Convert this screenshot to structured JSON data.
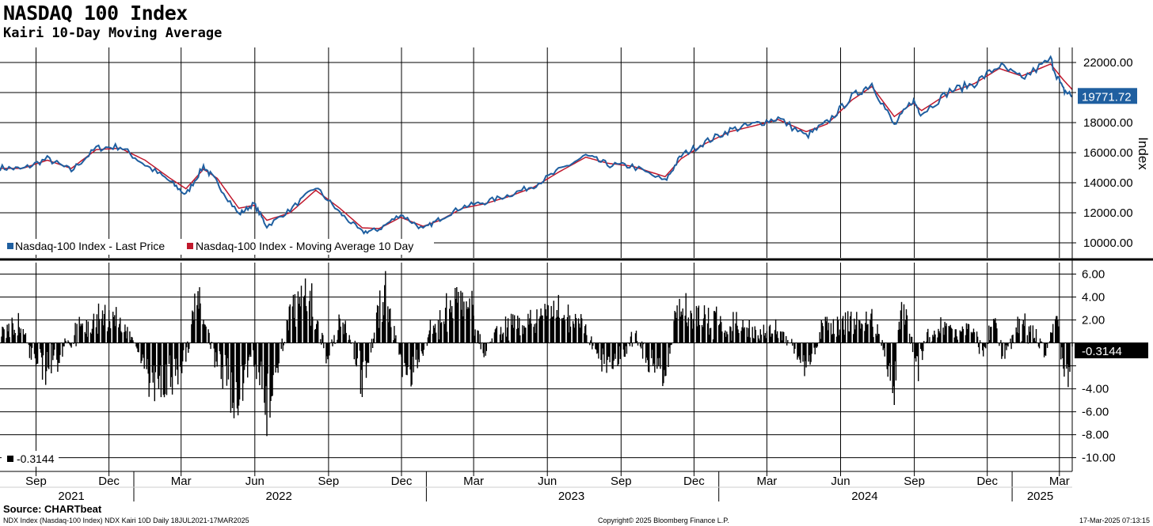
{
  "header": {
    "title": "NASDAQ 100 Index",
    "subtitle": "Kairi 10-Day Moving Average"
  },
  "footer": {
    "source": "Source: CHARTbeat",
    "ticker_info": "NDX Index (Nasdaq-100 Index) NDX Kairi 10D  Daily 18JUL2021-17MAR2025",
    "copyright": "Copyright© 2025 Bloomberg Finance L.P.",
    "timestamp": "17-Mar-2025 07:13:15"
  },
  "colors": {
    "last_price": "#1f5fa0",
    "moving_average": "#c0182c",
    "kairi_bars": "#000000",
    "gridline": "#000000"
  },
  "chart_data": [
    {
      "type": "line",
      "ylabel": "Index",
      "ylim": [
        9000,
        23000
      ],
      "yticks": [
        "22000.00",
        "18000.00",
        "16000.00",
        "14000.00",
        "12000.00",
        "10000.00"
      ],
      "last_value_label": "19771.72",
      "legend_position": "bottom-left",
      "x_start": "2021-07-18",
      "x_end": "2025-03-17",
      "x": [
        "2021-07-18",
        "2021-08-15",
        "2021-09-15",
        "2021-10-15",
        "2021-11-15",
        "2021-12-15",
        "2022-01-15",
        "2022-02-15",
        "2022-03-07",
        "2022-03-29",
        "2022-04-15",
        "2022-05-12",
        "2022-05-31",
        "2022-06-16",
        "2022-07-15",
        "2022-08-16",
        "2022-09-15",
        "2022-10-13",
        "2022-11-03",
        "2022-11-30",
        "2022-12-28",
        "2023-01-18",
        "2023-02-15",
        "2023-03-15",
        "2023-04-15",
        "2023-05-15",
        "2023-06-15",
        "2023-07-19",
        "2023-08-15",
        "2023-09-15",
        "2023-10-26",
        "2023-11-15",
        "2023-12-15",
        "2024-01-15",
        "2024-02-15",
        "2024-03-15",
        "2024-04-19",
        "2024-05-15",
        "2024-06-15",
        "2024-07-10",
        "2024-08-07",
        "2024-08-30",
        "2024-09-10",
        "2024-10-15",
        "2024-11-15",
        "2024-12-16",
        "2025-01-13",
        "2025-02-18",
        "2025-03-05",
        "2025-03-17"
      ],
      "series": [
        {
          "name": "Nasdaq-100 Index - Last Price",
          "values": [
            15000,
            14900,
            15600,
            14800,
            16300,
            16400,
            15200,
            14100,
            13200,
            15100,
            14000,
            11900,
            12600,
            11100,
            12200,
            13700,
            12000,
            10700,
            10900,
            11900,
            10900,
            11600,
            12400,
            12700,
            13200,
            13800,
            14800,
            15800,
            15200,
            15100,
            14100,
            15800,
            16700,
            17500,
            17900,
            18300,
            17100,
            18000,
            19700,
            20600,
            17800,
            19500,
            18600,
            20100,
            20600,
            21800,
            20900,
            22200,
            20200,
            19771.72
          ]
        },
        {
          "name": "Nasdaq-100 Index - Moving Average 10 Day",
          "values": [
            14950,
            14950,
            15500,
            14950,
            16200,
            16300,
            15500,
            14300,
            13600,
            14900,
            14300,
            12300,
            12500,
            11500,
            12000,
            13500,
            12300,
            11000,
            10950,
            11700,
            11100,
            11500,
            12300,
            12600,
            13100,
            13700,
            14700,
            15700,
            15300,
            15100,
            14400,
            15600,
            16600,
            17400,
            17800,
            18200,
            17400,
            17900,
            19500,
            20400,
            18400,
            19300,
            18800,
            20000,
            20600,
            21600,
            21100,
            21900,
            20900,
            20200
          ]
        }
      ]
    },
    {
      "type": "bar",
      "ylabel": "",
      "ylim": [
        -11.2,
        7.0
      ],
      "yticks": [
        "6.00",
        "4.00",
        "2.00",
        "-4.00",
        "-6.00",
        "-8.00",
        "-10.00"
      ],
      "last_value_label": "-0.3144",
      "legend_entry": "-0.3144",
      "x_start": "2021-07-18",
      "x_end": "2025-03-17",
      "anchors_x": [
        "2021-07-18",
        "2021-08-10",
        "2021-08-25",
        "2021-09-15",
        "2021-10-05",
        "2021-10-25",
        "2021-11-20",
        "2021-12-15",
        "2022-01-10",
        "2022-01-25",
        "2022-02-15",
        "2022-03-07",
        "2022-03-20",
        "2022-04-10",
        "2022-05-01",
        "2022-05-12",
        "2022-05-28",
        "2022-06-16",
        "2022-07-15",
        "2022-08-10",
        "2022-08-30",
        "2022-09-20",
        "2022-10-13",
        "2022-11-10",
        "2022-11-30",
        "2022-12-15",
        "2023-01-06",
        "2023-01-20",
        "2023-02-02",
        "2023-02-20",
        "2023-03-12",
        "2023-04-10",
        "2023-05-05",
        "2023-05-25",
        "2023-06-15",
        "2023-07-15",
        "2023-08-10",
        "2023-08-30",
        "2023-09-20",
        "2023-10-05",
        "2023-10-26",
        "2023-11-10",
        "2023-12-15",
        "2024-01-15",
        "2024-02-15",
        "2024-03-15",
        "2024-04-19",
        "2024-05-10",
        "2024-06-15",
        "2024-07-15",
        "2024-07-26",
        "2024-08-07",
        "2024-08-15",
        "2024-09-06",
        "2024-09-20",
        "2024-10-15",
        "2024-11-08",
        "2024-11-25",
        "2024-12-10",
        "2024-12-20",
        "2025-01-07",
        "2025-01-25",
        "2025-02-10",
        "2025-02-25",
        "2025-03-07",
        "2025-03-11",
        "2025-03-17"
      ],
      "anchors_y": [
        0.5,
        2.0,
        -1.0,
        -3.0,
        -1.0,
        1.8,
        3.0,
        2.5,
        -2.0,
        -5.0,
        -4.0,
        -2.0,
        5.5,
        -1.0,
        -5.0,
        -6.5,
        -1.0,
        -8.8,
        4.0,
        5.2,
        -2.0,
        3.0,
        -4.5,
        5.8,
        -2.0,
        -4.0,
        1.5,
        2.5,
        5.2,
        6.0,
        -1.0,
        2.0,
        2.0,
        3.0,
        3.5,
        2.0,
        -2.5,
        -1.5,
        1.0,
        -3.0,
        -4.0,
        4.0,
        2.5,
        2.0,
        1.0,
        1.5,
        -3.0,
        2.0,
        3.0,
        2.0,
        -1.5,
        -5.5,
        5.0,
        -3.0,
        1.5,
        1.5,
        2.0,
        -1.0,
        3.0,
        -1.5,
        1.5,
        2.0,
        -1.5,
        3.0,
        -3.5,
        -5.0,
        -0.3144
      ]
    }
  ],
  "x_axis": {
    "month_labels": [
      "Sep",
      "Dec",
      "Mar",
      "Jun",
      "Sep",
      "Dec",
      "Mar",
      "Jun",
      "Sep",
      "Dec",
      "Mar",
      "Jun",
      "Sep",
      "Dec",
      "Mar"
    ],
    "month_dates": [
      "2021-09-01",
      "2021-12-01",
      "2022-03-01",
      "2022-06-01",
      "2022-09-01",
      "2022-12-01",
      "2023-03-01",
      "2023-06-01",
      "2023-09-01",
      "2023-12-01",
      "2024-03-01",
      "2024-06-01",
      "2024-09-01",
      "2024-12-01",
      "2025-03-01"
    ],
    "year_labels": [
      "2021",
      "2022",
      "2023",
      "2024",
      "2025"
    ],
    "year_dates": [
      "2021-10-15",
      "2022-07-01",
      "2023-07-01",
      "2024-07-01",
      "2025-02-05"
    ],
    "year_boundaries": [
      "2022-01-01",
      "2023-01-01",
      "2024-01-01",
      "2025-01-01"
    ]
  }
}
